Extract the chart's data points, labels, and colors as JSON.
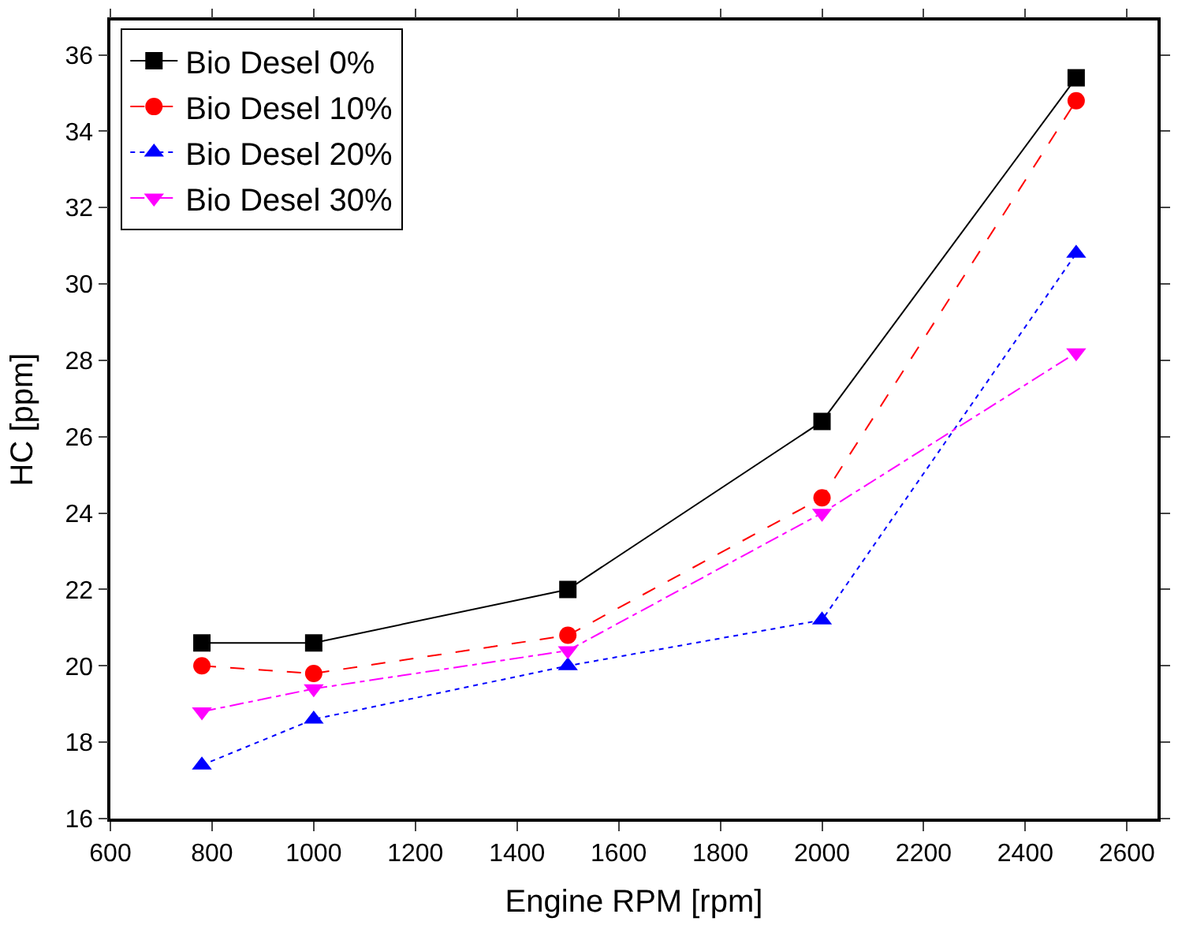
{
  "chart_data": {
    "type": "line",
    "xlabel": "Engine RPM [rpm]",
    "ylabel": "HC [ppm]",
    "x": [
      780,
      1000,
      1500,
      2000,
      2500
    ],
    "series": [
      {
        "name": "Bio Desel 0%",
        "color": "#000000",
        "marker": "square",
        "line_style": "solid",
        "values": [
          20.6,
          20.6,
          22,
          26.4,
          35.4
        ]
      },
      {
        "name": "Bio Desel 10%",
        "color": "#ff0000",
        "marker": "circle",
        "line_style": "dashed",
        "values": [
          20,
          19.8,
          20.8,
          24.4,
          34.8
        ]
      },
      {
        "name": "Bio Desel 20%",
        "color": "#0000ff",
        "marker": "triangle",
        "line_style": "dotted",
        "values": [
          17.4,
          18.6,
          20,
          21.2,
          30.8
        ]
      },
      {
        "name": "Bio Desel 30%",
        "color": "#ff00ff",
        "marker": "triangle-down",
        "line_style": "dashdot",
        "values": [
          18.8,
          19.4,
          20.4,
          24,
          28.2
        ]
      }
    ],
    "xlim": [
      600,
      2660
    ],
    "xticks": [
      600,
      800,
      1000,
      1200,
      1400,
      1600,
      1800,
      2000,
      2200,
      2400,
      2600
    ],
    "ylim": [
      16,
      36.9
    ],
    "yticks": [
      16,
      18,
      20,
      22,
      24,
      26,
      28,
      30,
      32,
      34,
      36
    ],
    "legend": "top left"
  }
}
